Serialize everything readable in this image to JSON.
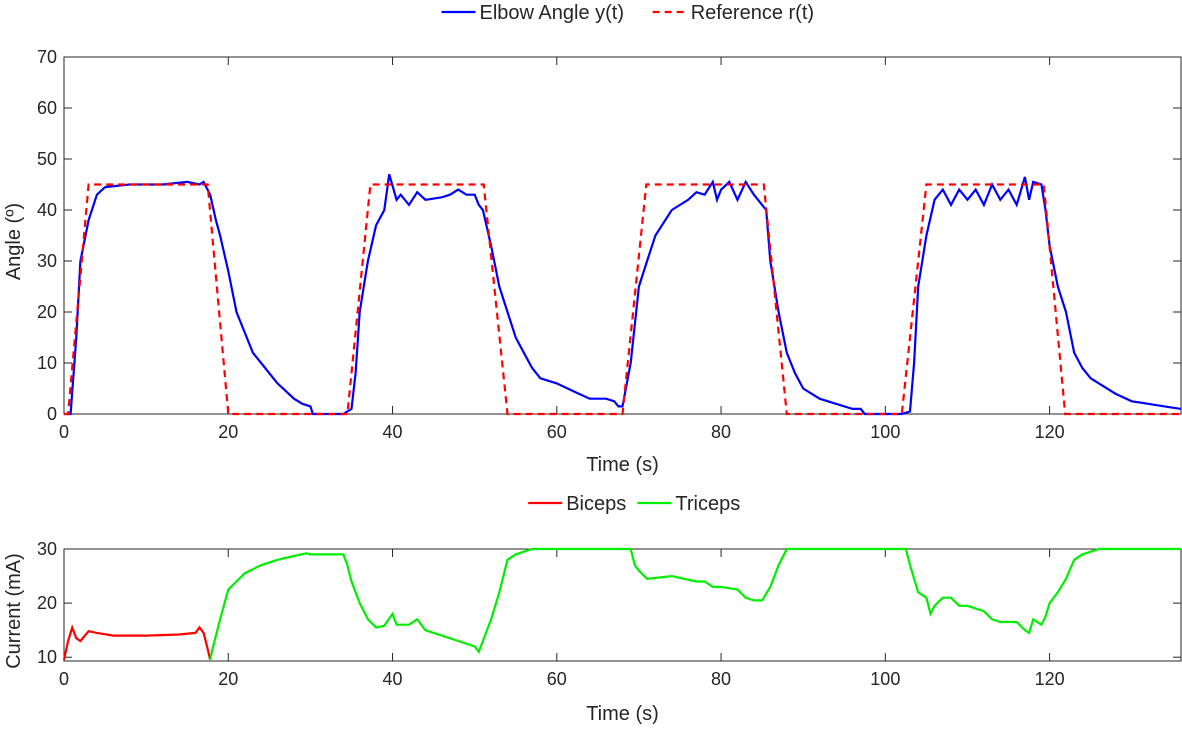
{
  "chart_data": [
    {
      "type": "line",
      "xlabel": "Time (s)",
      "ylabel": "Angle (º)",
      "xlim": [
        0,
        136
      ],
      "ylim": [
        0,
        70
      ],
      "xticks": [
        0,
        20,
        40,
        60,
        80,
        100,
        120
      ],
      "yticks": [
        0,
        10,
        20,
        30,
        40,
        50,
        60,
        70
      ],
      "series": [
        {
          "name": "Elbow Angle y(t)",
          "color": "#0000ff",
          "linestyle": "solid",
          "x": [
            0,
            0.8,
            1.5,
            2,
            3,
            4,
            5,
            8,
            12,
            15,
            16.5,
            17,
            17.8,
            18.5,
            19,
            20,
            21,
            22,
            23,
            24,
            25,
            26,
            27,
            28,
            29,
            30,
            30.3,
            34,
            35,
            35.5,
            36,
            37,
            38,
            39,
            39.6,
            40.5,
            41,
            42,
            43,
            44,
            46,
            47,
            48,
            49,
            50,
            50.5,
            51,
            52,
            53,
            54,
            55,
            56,
            57,
            58,
            60,
            62,
            64,
            66,
            67,
            67.5,
            68,
            69,
            70,
            71,
            72,
            74,
            76,
            77,
            78,
            79,
            79.5,
            80,
            81,
            82,
            83,
            84,
            85,
            85.5,
            86,
            87,
            88,
            89,
            90,
            92,
            94,
            96,
            97,
            97.5,
            102,
            103,
            103.5,
            104,
            105,
            106,
            107,
            108,
            109,
            110,
            111,
            112,
            113,
            114,
            115,
            116,
            117,
            117.5,
            118,
            119,
            119.5,
            120,
            121,
            122,
            123,
            124,
            125,
            126,
            128,
            130,
            132,
            134,
            136
          ],
          "values": [
            0,
            0,
            15,
            30,
            38,
            43,
            44.5,
            45,
            45,
            45.5,
            45,
            45.5,
            43,
            38,
            35,
            28,
            20,
            16,
            12,
            10,
            8,
            6,
            4.5,
            3,
            2,
            1.5,
            0,
            0,
            1,
            8,
            20,
            30,
            37,
            40,
            47,
            42,
            43,
            41,
            43.5,
            42,
            42.5,
            43,
            44,
            43,
            43,
            41,
            40,
            33,
            25,
            20,
            15,
            12,
            9,
            7,
            6,
            4.5,
            3,
            3,
            2.5,
            1.5,
            1.5,
            10,
            25,
            30,
            35,
            40,
            42,
            43.5,
            43,
            45.5,
            42,
            44,
            45.5,
            42,
            45.5,
            43,
            41,
            40,
            30,
            20,
            12,
            8,
            5,
            3,
            2,
            1,
            1,
            0,
            0,
            0.5,
            10,
            25,
            35,
            42,
            44,
            41,
            44,
            42,
            44,
            41,
            45,
            42,
            44,
            41,
            46.5,
            42,
            45.5,
            45,
            40,
            33,
            25,
            20,
            12,
            9,
            7,
            6,
            4,
            2.5,
            2,
            1.5,
            1
          ]
        },
        {
          "name": "Reference r(t)",
          "color": "#ff0000",
          "linestyle": "dashed",
          "x": [
            0,
            0.5,
            3,
            17.5,
            20,
            34.5,
            37.3,
            51.1,
            54,
            68,
            70.9,
            85.2,
            88,
            102,
            105,
            119.3,
            121.9,
            136
          ],
          "values": [
            0,
            0,
            45,
            45,
            0,
            0,
            45,
            45,
            0,
            0,
            45,
            45,
            0,
            0,
            45,
            45,
            0,
            0
          ]
        }
      ]
    },
    {
      "type": "line",
      "xlabel": "Time (s)",
      "ylabel": "Current (mA)",
      "xlim": [
        0,
        136
      ],
      "ylim": [
        9.3,
        30
      ],
      "xticks": [
        0,
        20,
        40,
        60,
        80,
        100,
        120
      ],
      "yticks": [
        10,
        20,
        30
      ],
      "series": [
        {
          "name": "Biceps",
          "color": "#ff0000",
          "linestyle": "solid",
          "x": [
            0,
            0.5,
            1,
            1.5,
            2,
            3,
            4,
            6,
            10,
            14,
            16,
            16.5,
            17,
            17.5,
            17.8
          ],
          "values": [
            9.5,
            13,
            15.5,
            13.5,
            13,
            14.8,
            14.5,
            14,
            14,
            14.2,
            14.5,
            15.5,
            14.5,
            11.5,
            9.5
          ]
        },
        {
          "name": "Triceps",
          "color": "#00ee00",
          "linestyle": "solid",
          "x": [
            17.8,
            18,
            19,
            20,
            21,
            22,
            24,
            26,
            28,
            29.5,
            30,
            34,
            34.5,
            35,
            36,
            37,
            38,
            39,
            40,
            40.5,
            42,
            43,
            44,
            46,
            48,
            50,
            50.5,
            51,
            52,
            53,
            54,
            55,
            57,
            69,
            69.5,
            70,
            71,
            74,
            77,
            78,
            79,
            80,
            82,
            83,
            84,
            85,
            86,
            87,
            88,
            102.5,
            103,
            104,
            105,
            105.5,
            106,
            107,
            108,
            109,
            110,
            112,
            113,
            114,
            116,
            117,
            117.5,
            118,
            119,
            119.5,
            120,
            121,
            122,
            123,
            124,
            126,
            136
          ],
          "values": [
            9.5,
            11,
            17,
            22.5,
            24,
            25.5,
            27,
            28,
            28.7,
            29.2,
            29,
            29,
            27,
            24,
            20,
            17,
            15.5,
            15.8,
            18,
            16,
            16,
            17,
            15,
            14,
            13,
            12,
            11,
            13,
            17,
            22,
            28,
            29,
            30,
            30,
            27,
            26,
            24.5,
            25,
            24,
            24,
            23,
            23,
            22.5,
            21,
            20.5,
            20.5,
            23,
            27,
            30,
            30,
            27,
            22,
            21,
            18,
            19.5,
            21,
            21,
            19.5,
            19.5,
            18.5,
            17,
            16.5,
            16.5,
            15,
            14.5,
            17,
            16,
            17.5,
            20,
            22,
            24.5,
            28,
            29,
            30,
            30
          ]
        }
      ]
    }
  ]
}
